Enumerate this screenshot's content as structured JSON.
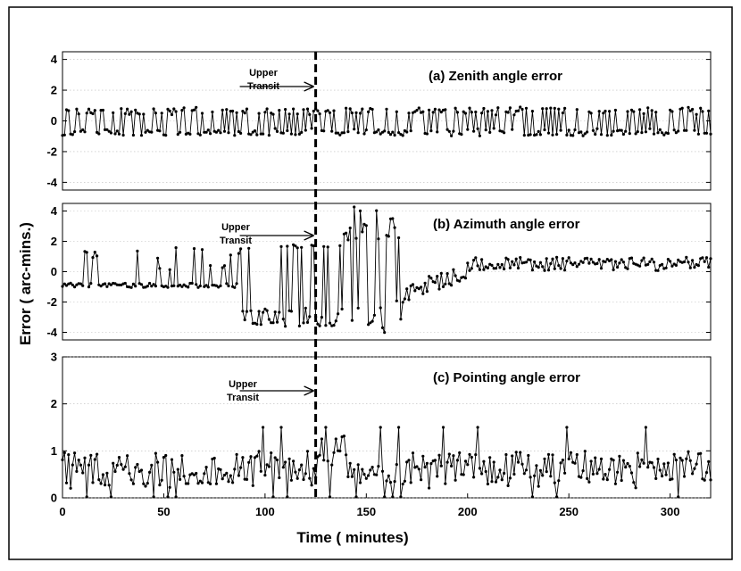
{
  "chart_data": [
    {
      "type": "line",
      "title": "(a)  Zenith  angle  error",
      "xlim": [
        0,
        320
      ],
      "ylim": [
        -4.5,
        4.5
      ],
      "yticks": [
        4,
        2,
        0,
        -2,
        -4
      ],
      "grid": "horizontal dotted",
      "annotation": {
        "line1": "Upper",
        "line2": "Transit"
      },
      "x_at": 125,
      "markers": "filled circles"
    },
    {
      "type": "line",
      "title": "(b)  Azimuth  angle  error",
      "xlim": [
        0,
        320
      ],
      "ylim": [
        -4.5,
        4.5
      ],
      "yticks": [
        4,
        2,
        0,
        -2,
        -4
      ],
      "grid": "horizontal dotted",
      "annotation": {
        "line1": "Upper",
        "line2": "Transit"
      },
      "x_at": 125,
      "markers": "filled circles"
    },
    {
      "type": "line",
      "title": "(c)  Pointing   angle  error",
      "xlim": [
        0,
        320
      ],
      "ylim": [
        0,
        3
      ],
      "yticks": [
        3,
        2,
        1,
        0
      ],
      "grid": "horizontal dotted",
      "annotation": {
        "line1": "Upper",
        "line2": "Transit"
      },
      "x_at": 125,
      "markers": "filled circles"
    }
  ],
  "axes": {
    "xticks": [
      "0",
      "50",
      "100",
      "150",
      "200",
      "250",
      "300"
    ],
    "xlabel": "Time  ( minutes)",
    "ylabel": "Error ( arc-mins.)"
  }
}
